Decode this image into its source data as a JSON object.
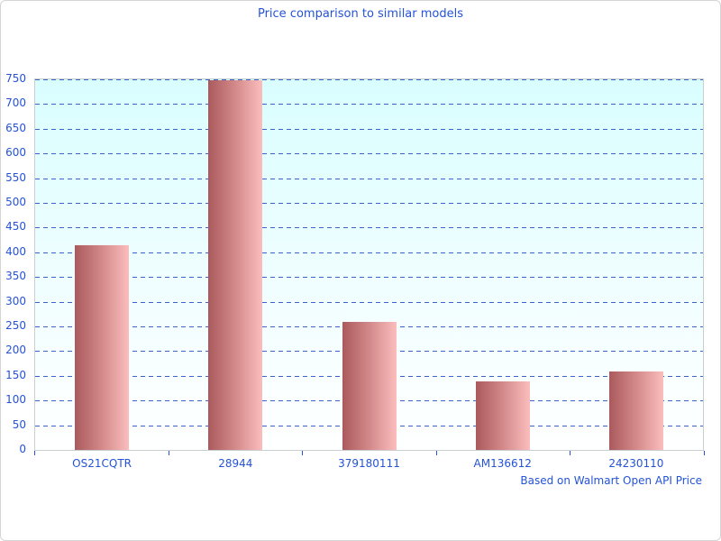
{
  "title": "Price comparison to similar models",
  "footer": "Based on Walmart Open API Price",
  "colors": {
    "text_blue": "#2453d6",
    "gridline_blue": "#3a64c8",
    "plot_bg_top": "#d9feff",
    "plot_bg_bottom": "#feffff",
    "plot_border": "#c9ced1",
    "page_border": "#d5d5d5",
    "bar_gradient_left": "#aa5a5c",
    "bar_gradient_right": "#fbbdbd"
  },
  "chart_data": {
    "type": "bar",
    "title": "Price comparison to similar models",
    "categories": [
      "OS21CQTR",
      "28944",
      "379180111",
      "AM136612",
      "24230110"
    ],
    "values": [
      414,
      748,
      260,
      139,
      158
    ],
    "xlabel": "",
    "ylabel": "",
    "ylim": [
      0,
      750
    ],
    "ytick_step": 50,
    "yticks": [
      0,
      50,
      100,
      150,
      200,
      250,
      300,
      350,
      400,
      450,
      500,
      550,
      600,
      650,
      700,
      750
    ],
    "grid": "horizontal dashed, on",
    "legend": "none",
    "annotation": "Based on Walmart Open API Price",
    "bar_style": "horizontal gradient dark-rose to light-pink"
  }
}
